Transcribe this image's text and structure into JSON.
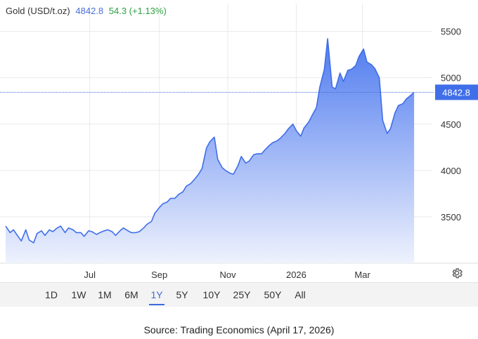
{
  "legend": {
    "name": "Gold (USD/t.oz)",
    "price": "4842.8",
    "change": "54.3 (+1.13%)"
  },
  "last_price_label": "4842.8",
  "colors": {
    "line": "#3f6ee8",
    "area_top": "#4f7bef",
    "area_bottom": "#eef2fd",
    "price_line": "#4a6fd6",
    "badge": "#3f6ee8",
    "grid": "#e9e9e9",
    "change": "#2ea043"
  },
  "range_buttons": [
    {
      "label": "1D"
    },
    {
      "label": "1W"
    },
    {
      "label": "1M"
    },
    {
      "label": "6M"
    },
    {
      "label": "1Y",
      "active": true
    },
    {
      "label": "5Y"
    },
    {
      "label": "10Y"
    },
    {
      "label": "25Y"
    },
    {
      "label": "50Y"
    },
    {
      "label": "All"
    }
  ],
  "source": "Source: Trading Economics (April 17, 2026)",
  "gear_icon": "gear-icon",
  "chart_data": {
    "type": "area",
    "title": "",
    "xlabel": "",
    "ylabel": "",
    "ylim": [
      3000,
      5800
    ],
    "yticks": [
      3500,
      4000,
      4500,
      5000,
      5500
    ],
    "xticks": [
      {
        "label": "Jul",
        "date": "2025-07-01"
      },
      {
        "label": "Sep",
        "date": "2025-09-01"
      },
      {
        "label": "Nov",
        "date": "2025-11-01"
      },
      {
        "label": "2026",
        "date": "2026-01-01"
      },
      {
        "label": "Mar",
        "date": "2026-03-01"
      }
    ],
    "x_range": [
      "2025-04-17",
      "2026-05-01"
    ],
    "grid": true,
    "last_value": 4842.8,
    "series": [
      {
        "x": [
          "2025-04-17",
          "2025-04-21",
          "2025-04-24",
          "2025-04-28",
          "2025-05-01",
          "2025-05-05",
          "2025-05-08",
          "2025-05-12",
          "2025-05-15",
          "2025-05-19",
          "2025-05-22",
          "2025-05-26",
          "2025-05-29",
          "2025-06-02",
          "2025-06-05",
          "2025-06-09",
          "2025-06-12",
          "2025-06-16",
          "2025-06-19",
          "2025-06-23",
          "2025-06-26",
          "2025-06-30",
          "2025-07-03",
          "2025-07-07",
          "2025-07-10",
          "2025-07-14",
          "2025-07-17",
          "2025-07-21",
          "2025-07-24",
          "2025-07-28",
          "2025-07-31",
          "2025-08-04",
          "2025-08-07",
          "2025-08-11",
          "2025-08-14",
          "2025-08-18",
          "2025-08-21",
          "2025-08-25",
          "2025-08-28",
          "2025-09-01",
          "2025-09-04",
          "2025-09-08",
          "2025-09-11",
          "2025-09-15",
          "2025-09-18",
          "2025-09-22",
          "2025-09-25",
          "2025-09-29",
          "2025-10-02",
          "2025-10-06",
          "2025-10-09",
          "2025-10-13",
          "2025-10-16",
          "2025-10-20",
          "2025-10-23",
          "2025-10-27",
          "2025-10-30",
          "2025-11-03",
          "2025-11-06",
          "2025-11-10",
          "2025-11-13",
          "2025-11-17",
          "2025-11-20",
          "2025-11-24",
          "2025-11-27",
          "2025-12-01",
          "2025-12-04",
          "2025-12-08",
          "2025-12-11",
          "2025-12-15",
          "2025-12-18",
          "2025-12-22",
          "2025-12-25",
          "2025-12-29",
          "2026-01-01",
          "2026-01-05",
          "2026-01-08",
          "2026-01-12",
          "2026-01-15",
          "2026-01-19",
          "2026-01-22",
          "2026-01-26",
          "2026-01-29",
          "2026-02-02",
          "2026-02-05",
          "2026-02-09",
          "2026-02-12",
          "2026-02-16",
          "2026-02-19",
          "2026-02-23",
          "2026-02-26",
          "2026-03-02",
          "2026-03-05",
          "2026-03-09",
          "2026-03-12",
          "2026-03-16",
          "2026-03-19",
          "2026-03-23",
          "2026-03-26",
          "2026-03-30",
          "2026-04-02",
          "2026-04-06",
          "2026-04-09",
          "2026-04-13",
          "2026-04-16"
        ],
        "values": [
          3400,
          3330,
          3360,
          3290,
          3240,
          3360,
          3250,
          3220,
          3320,
          3350,
          3300,
          3360,
          3340,
          3380,
          3400,
          3330,
          3380,
          3360,
          3330,
          3330,
          3290,
          3350,
          3340,
          3310,
          3330,
          3350,
          3360,
          3340,
          3300,
          3350,
          3380,
          3350,
          3330,
          3330,
          3340,
          3380,
          3420,
          3450,
          3540,
          3600,
          3640,
          3660,
          3700,
          3700,
          3740,
          3770,
          3830,
          3860,
          3900,
          3960,
          4020,
          4240,
          4310,
          4360,
          4120,
          4030,
          4000,
          3970,
          3960,
          4050,
          4150,
          4080,
          4100,
          4170,
          4180,
          4180,
          4220,
          4270,
          4300,
          4320,
          4350,
          4400,
          4450,
          4500,
          4430,
          4370,
          4460,
          4520,
          4590,
          4680,
          4900,
          5090,
          5420,
          4900,
          4880,
          5050,
          4960,
          5080,
          5090,
          5130,
          5230,
          5310,
          5170,
          5140,
          5100,
          5000,
          4540,
          4400,
          4450,
          4620,
          4700,
          4720,
          4770,
          4810,
          4842.8
        ]
      }
    ]
  }
}
